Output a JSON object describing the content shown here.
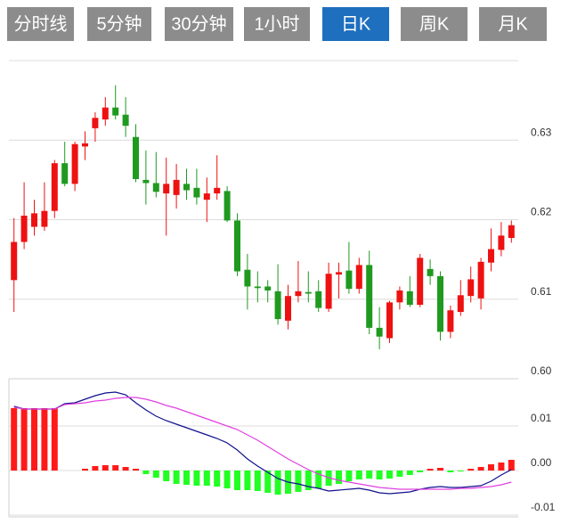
{
  "tabs": [
    "分时线",
    "5分钟",
    "30分钟",
    "1小时",
    "日K",
    "周K",
    "月K"
  ],
  "active_tab": 4,
  "tab_color": "#8c8c8c",
  "active_tab_color": "#1e6fbe",
  "chart_data": [
    {
      "type": "candlestick",
      "up_color": "#ee1111",
      "down_color": "#1f9a1f",
      "grid": true,
      "ylim": [
        0.6,
        0.64
      ],
      "yticks": [
        {
          "value": 0.6,
          "label": "0.60"
        },
        0.61,
        0.62,
        0.63
      ],
      "open": [
        0.6124,
        0.6172,
        0.6191,
        0.6191,
        0.6211,
        0.6271,
        0.6245,
        0.6292,
        0.6315,
        0.6326,
        0.6341,
        0.6332,
        0.6304,
        0.625,
        0.6246,
        0.6233,
        0.6231,
        0.6245,
        0.624,
        0.6225,
        0.6233,
        0.6236,
        0.6199,
        0.6137,
        0.6116,
        0.6116,
        0.611,
        0.6073,
        0.6104,
        0.6109,
        0.611,
        0.6088,
        0.6131,
        0.6136,
        0.6113,
        0.6143,
        0.6064,
        0.6051,
        0.6096,
        0.611,
        0.6093,
        0.6138,
        0.6129,
        0.6059,
        0.6084,
        0.6104,
        0.6101,
        0.6146,
        0.6162,
        0.6177
      ],
      "high": [
        0.6202,
        0.6247,
        0.6225,
        0.6247,
        0.6275,
        0.6298,
        0.6298,
        0.6311,
        0.6335,
        0.6354,
        0.6369,
        0.6354,
        0.632,
        0.6287,
        0.6285,
        0.6278,
        0.627,
        0.6264,
        0.6264,
        0.6253,
        0.6281,
        0.6242,
        0.6208,
        0.6157,
        0.6135,
        0.6124,
        0.6144,
        0.6118,
        0.6148,
        0.6135,
        0.6124,
        0.6146,
        0.6146,
        0.6172,
        0.6152,
        0.6161,
        0.609,
        0.6098,
        0.6116,
        0.6129,
        0.6157,
        0.615,
        0.6135,
        0.6092,
        0.6124,
        0.6141,
        0.6152,
        0.6189,
        0.6197,
        0.6199
      ],
      "low": [
        0.6084,
        0.6163,
        0.618,
        0.6186,
        0.6202,
        0.6242,
        0.6236,
        0.6275,
        0.6298,
        0.6318,
        0.6326,
        0.6304,
        0.6247,
        0.6219,
        0.6228,
        0.618,
        0.6214,
        0.6225,
        0.6219,
        0.6197,
        0.6225,
        0.6197,
        0.6129,
        0.6087,
        0.6096,
        0.6096,
        0.6068,
        0.6062,
        0.6096,
        0.6096,
        0.6084,
        0.6084,
        0.6101,
        0.6107,
        0.6107,
        0.6056,
        0.6037,
        0.6045,
        0.6087,
        0.609,
        0.609,
        0.6118,
        0.6048,
        0.6051,
        0.6079,
        0.6096,
        0.6087,
        0.6135,
        0.6154,
        0.6171
      ],
      "close": [
        0.6172,
        0.6205,
        0.6208,
        0.6211,
        0.6271,
        0.6245,
        0.6295,
        0.6296,
        0.6328,
        0.6341,
        0.6331,
        0.6318,
        0.6251,
        0.6246,
        0.6235,
        0.6245,
        0.625,
        0.6237,
        0.6228,
        0.6233,
        0.624,
        0.6199,
        0.6135,
        0.6116,
        0.6114,
        0.6111,
        0.6075,
        0.6104,
        0.611,
        0.6107,
        0.6089,
        0.6132,
        0.6134,
        0.6113,
        0.6143,
        0.6064,
        0.6053,
        0.6096,
        0.6111,
        0.6093,
        0.6152,
        0.6129,
        0.6059,
        0.6086,
        0.6105,
        0.6125,
        0.6147,
        0.6163,
        0.618,
        0.6193
      ]
    },
    {
      "type": "macd",
      "grid": true,
      "ylim": [
        -0.0104,
        0.0206
      ],
      "yticks": [
        -0.01,
        {
          "value": 0,
          "label": "0.00"
        },
        0.01
      ],
      "series": [
        {
          "type": "bar",
          "up_color": "#ff1a1a",
          "down_color": "#22ff22",
          "values": [
            0.014,
            0.014,
            0.014,
            0.014,
            0.014,
            0,
            0,
            0.0004,
            0.001,
            0.0012,
            0.0012,
            0.0008,
            0.0004,
            -0.0008,
            -0.0016,
            -0.0024,
            -0.003,
            -0.0032,
            -0.0034,
            -0.0034,
            -0.0036,
            -0.004,
            -0.0044,
            -0.0044,
            -0.0046,
            -0.005,
            -0.0054,
            -0.0052,
            -0.0048,
            -0.0044,
            -0.004,
            -0.0034,
            -0.003,
            -0.0024,
            -0.002,
            -0.0018,
            -0.002,
            -0.0018,
            -0.0014,
            -0.001,
            -0.0004,
            0.0004,
            0.0006,
            -0.0004,
            -0.0002,
            0.0004,
            0.0008,
            0.0014,
            0.0018,
            0.0024
          ]
        },
        {
          "type": "line",
          "color": "#10108c",
          "values": [
            0.0144,
            0.0138,
            0.0138,
            0.0138,
            0.0138,
            0.015,
            0.0152,
            0.016,
            0.0168,
            0.0174,
            0.0176,
            0.017,
            0.0152,
            0.0136,
            0.0122,
            0.0112,
            0.0104,
            0.0096,
            0.0088,
            0.008,
            0.0072,
            0.0062,
            0.0046,
            0.0026,
            0.001,
            -0.0004,
            -0.0018,
            -0.0026,
            -0.003,
            -0.0036,
            -0.004,
            -0.0046,
            -0.0044,
            -0.0042,
            -0.004,
            -0.0044,
            -0.005,
            -0.0052,
            -0.005,
            -0.0048,
            -0.0042,
            -0.0038,
            -0.0036,
            -0.0038,
            -0.0038,
            -0.0036,
            -0.0034,
            -0.0024,
            -0.001,
            0.0002
          ]
        },
        {
          "type": "line",
          "color": "#e040e0",
          "values": [
            0.0142,
            0.0138,
            0.0138,
            0.0138,
            0.0138,
            0.0148,
            0.015,
            0.0152,
            0.0156,
            0.0158,
            0.0162,
            0.0164,
            0.0164,
            0.016,
            0.0154,
            0.0146,
            0.014,
            0.0132,
            0.0124,
            0.0116,
            0.0108,
            0.01,
            0.0092,
            0.008,
            0.0068,
            0.0054,
            0.004,
            0.0026,
            0.0014,
            0.0002,
            -0.0008,
            -0.0016,
            -0.0022,
            -0.0026,
            -0.003,
            -0.0034,
            -0.0038,
            -0.004,
            -0.0042,
            -0.0042,
            -0.0042,
            -0.0042,
            -0.0042,
            -0.0042,
            -0.004,
            -0.004,
            -0.0038,
            -0.0036,
            -0.0032,
            -0.0026
          ]
        }
      ]
    }
  ]
}
